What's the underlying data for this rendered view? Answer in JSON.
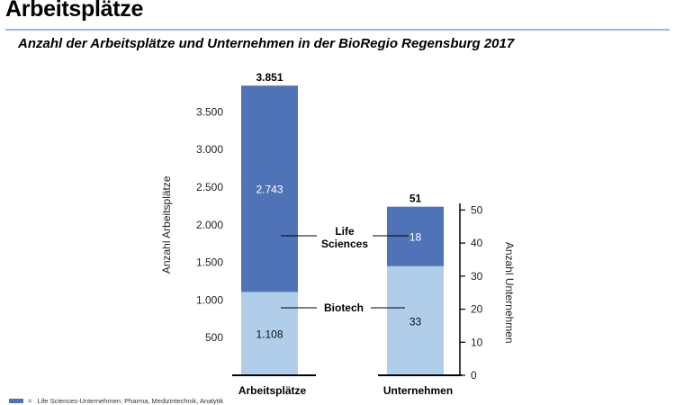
{
  "page": {
    "heading": "Arbeitsplätze"
  },
  "chart_data": {
    "type": "bar",
    "title": "Anzahl der Arbeitsplätze und Unternehmen in der BioRegio Regensburg 2017",
    "bars": [
      {
        "category": "Arbeitsplätze",
        "axis": "left",
        "total": 3851,
        "total_label": "3.851",
        "segments": [
          {
            "series": "Biotech",
            "value": 1108,
            "label": "1.108"
          },
          {
            "series": "Life Sciences",
            "value": 2743,
            "label": "2.743"
          }
        ]
      },
      {
        "category": "Unternehmen",
        "axis": "right",
        "total": 51,
        "total_label": "51",
        "segments": [
          {
            "series": "Biotech",
            "value": 33,
            "label": "33"
          },
          {
            "series": "Life Sciences",
            "value": 18,
            "label": "18"
          }
        ]
      }
    ],
    "left_axis": {
      "label": "Anzahl Arbeitsplätze",
      "ylim": [
        0,
        3900
      ],
      "ticks": [
        500,
        1000,
        1500,
        2000,
        2500,
        3000,
        3500
      ],
      "tick_labels": [
        "500",
        "1.000",
        "1.500",
        "2.000",
        "2.500",
        "3.000",
        "3.500"
      ]
    },
    "right_axis": {
      "label": "Anzahl Unternehmen",
      "ylim": [
        0,
        52
      ],
      "ticks": [
        0,
        10,
        20,
        30,
        40,
        50
      ],
      "tick_labels": [
        "0",
        "10",
        "20",
        "30",
        "40",
        "50"
      ]
    },
    "series_labels": [
      {
        "series": "Life Sciences",
        "text_lines": [
          "Life",
          "Sciences"
        ]
      },
      {
        "series": "Biotech",
        "text_lines": [
          "Biotech"
        ]
      }
    ],
    "colors": {
      "Life Sciences": "#4f73b6",
      "Biotech": "#b0cdea"
    },
    "grid": false,
    "legend": {
      "placement": "bottom-left",
      "marker": "=",
      "text": "Life Sciences-Unternehmen: Pharma, Medizintechnik, Analytik",
      "color": "#4f73b6"
    }
  }
}
